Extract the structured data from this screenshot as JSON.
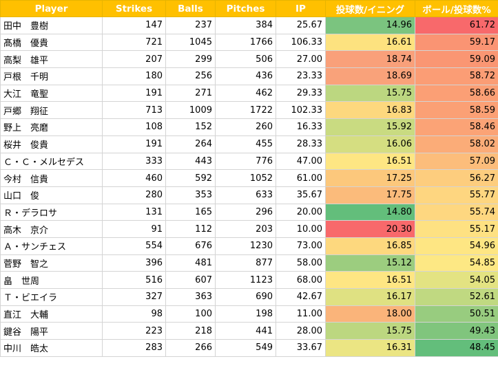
{
  "headers": {
    "player": "Player",
    "strikes": "Strikes",
    "balls": "Balls",
    "pitches": "Pitches",
    "ip": "IP",
    "ppi": "投球数/イニング",
    "ball_pct": "ボール/投球数%"
  },
  "rows": [
    {
      "player": "田中　豊樹",
      "strikes": "147",
      "balls": "237",
      "pitches": "384",
      "ip": "25.67",
      "ppi": "14.96",
      "ball_pct": "61.72",
      "ppi_color": "#7bc47f",
      "ball_pct_color": "#f8696b"
    },
    {
      "player": "髙橋　優貴",
      "strikes": "721",
      "balls": "1045",
      "pitches": "1766",
      "ip": "106.33",
      "ppi": "16.61",
      "ball_pct": "59.17",
      "ppi_color": "#fde27f",
      "ball_pct_color": "#fa9473"
    },
    {
      "player": "高梨　雄平",
      "strikes": "207",
      "balls": "299",
      "pitches": "506",
      "ip": "27.00",
      "ppi": "18.74",
      "ball_pct": "59.09",
      "ppi_color": "#f9a07a",
      "ball_pct_color": "#fa9673"
    },
    {
      "player": "戸根　千明",
      "strikes": "180",
      "balls": "256",
      "pitches": "436",
      "ip": "23.33",
      "ppi": "18.69",
      "ball_pct": "58.72",
      "ppi_color": "#f9a27a",
      "ball_pct_color": "#fb9d75"
    },
    {
      "player": "大江　竜聖",
      "strikes": "191",
      "balls": "271",
      "pitches": "462",
      "ip": "29.33",
      "ppi": "15.75",
      "ball_pct": "58.66",
      "ppi_color": "#bcd780",
      "ball_pct_color": "#fb9f75"
    },
    {
      "player": "戸郷　翔征",
      "strikes": "713",
      "balls": "1009",
      "pitches": "1722",
      "ip": "102.33",
      "ppi": "16.83",
      "ball_pct": "58.59",
      "ppi_color": "#fdd87e",
      "ball_pct_color": "#fba075"
    },
    {
      "player": "野上　亮磨",
      "strikes": "108",
      "balls": "152",
      "pitches": "260",
      "ip": "16.33",
      "ppi": "15.92",
      "ball_pct": "58.46",
      "ppi_color": "#c9db81",
      "ball_pct_color": "#fba376"
    },
    {
      "player": "桜井　俊貴",
      "strikes": "191",
      "balls": "264",
      "pitches": "455",
      "ip": "28.33",
      "ppi": "16.06",
      "ball_pct": "58.02",
      "ppi_color": "#d5de81",
      "ball_pct_color": "#fbac78"
    },
    {
      "player": "Ｃ・Ｃ・メルセデス",
      "strikes": "333",
      "balls": "443",
      "pitches": "776",
      "ip": "47.00",
      "ppi": "16.51",
      "ball_pct": "57.09",
      "ppi_color": "#fee683",
      "ball_pct_color": "#fcbd7b"
    },
    {
      "player": "今村　信貴",
      "strikes": "460",
      "balls": "592",
      "pitches": "1052",
      "ip": "61.00",
      "ppi": "17.25",
      "ball_pct": "56.27",
      "ppi_color": "#fcc87c",
      "ball_pct_color": "#fdcd7e"
    },
    {
      "player": "山口　俊",
      "strikes": "280",
      "balls": "353",
      "pitches": "633",
      "ip": "35.67",
      "ppi": "17.75",
      "ball_pct": "55.77",
      "ppi_color": "#fbbb7b",
      "ball_pct_color": "#fed680"
    },
    {
      "player": "Ｒ・デラロサ",
      "strikes": "131",
      "balls": "165",
      "pitches": "296",
      "ip": "20.00",
      "ppi": "14.80",
      "ball_pct": "55.74",
      "ppi_color": "#63be7b",
      "ball_pct_color": "#fed780"
    },
    {
      "player": "高木　京介",
      "strikes": "91",
      "balls": "112",
      "pitches": "203",
      "ip": "10.00",
      "ppi": "20.30",
      "ball_pct": "55.17",
      "ppi_color": "#f8696b",
      "ball_pct_color": "#fee182"
    },
    {
      "player": "Ａ・サンチェス",
      "strikes": "554",
      "balls": "676",
      "pitches": "1230",
      "ip": "73.00",
      "ppi": "16.85",
      "ball_pct": "54.96",
      "ppi_color": "#fdd87e",
      "ball_pct_color": "#fee683"
    },
    {
      "player": "菅野　智之",
      "strikes": "396",
      "balls": "481",
      "pitches": "877",
      "ip": "58.00",
      "ppi": "15.12",
      "ball_pct": "54.85",
      "ppi_color": "#9ccd7f",
      "ball_pct_color": "#fde884"
    },
    {
      "player": "畠　世周",
      "strikes": "516",
      "balls": "607",
      "pitches": "1123",
      "ip": "68.00",
      "ppi": "16.51",
      "ball_pct": "54.05",
      "ppi_color": "#fee683",
      "ball_pct_color": "#e3e382"
    },
    {
      "player": "Ｔ・ビエイラ",
      "strikes": "327",
      "balls": "363",
      "pitches": "690",
      "ip": "42.67",
      "ppi": "16.17",
      "ball_pct": "52.61",
      "ppi_color": "#dfe182",
      "ball_pct_color": "#c0d981"
    },
    {
      "player": "直江　大輔",
      "strikes": "98",
      "balls": "100",
      "pitches": "198",
      "ip": "11.00",
      "ppi": "18.00",
      "ball_pct": "50.51",
      "ppi_color": "#fab47a",
      "ball_pct_color": "#98cc7f"
    },
    {
      "player": "鍵谷　陽平",
      "strikes": "223",
      "balls": "218",
      "pitches": "441",
      "ip": "28.00",
      "ppi": "15.75",
      "ball_pct": "49.43",
      "ppi_color": "#bcd780",
      "ball_pct_color": "#80c57d"
    },
    {
      "player": "中川　皓太",
      "strikes": "283",
      "balls": "266",
      "pitches": "549",
      "ip": "33.67",
      "ppi": "16.31",
      "ball_pct": "48.45",
      "ppi_color": "#ebe583",
      "ball_pct_color": "#63be7b"
    }
  ]
}
